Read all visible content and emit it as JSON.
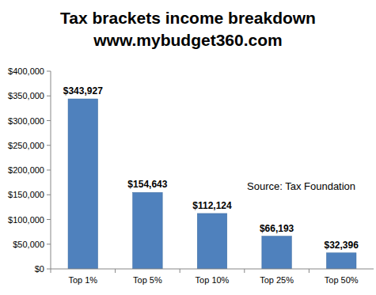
{
  "chart_data": {
    "type": "bar",
    "title": "Tax brackets income breakdown",
    "subtitle": "www.mybudget360.com",
    "annotations": [
      "Source:  Tax Foundation"
    ],
    "categories": [
      "Top 1%",
      "Top 5%",
      "Top 10%",
      "Top 25%",
      "Top 50%"
    ],
    "values": [
      343927,
      154643,
      112124,
      66193,
      32396
    ],
    "value_labels": [
      "$343,927",
      "$154,643",
      "$112,124",
      "$66,193",
      "$32,396"
    ],
    "data_labels": true,
    "color": "#4f81bd",
    "ylim": [
      0,
      400000
    ],
    "yticks": [
      {
        "value": 0,
        "label": "$0"
      },
      {
        "value": 50000,
        "label": "$50,000"
      },
      {
        "value": 100000,
        "label": "$100,000"
      },
      {
        "value": 150000,
        "label": "$150,000"
      },
      {
        "value": 200000,
        "label": "$200,000"
      },
      {
        "value": 250000,
        "label": "$250,000"
      },
      {
        "value": 300000,
        "label": "$300,000"
      },
      {
        "value": 350000,
        "label": "$350,000"
      },
      {
        "value": 400000,
        "label": "$400,000"
      }
    ],
    "grid": false
  }
}
